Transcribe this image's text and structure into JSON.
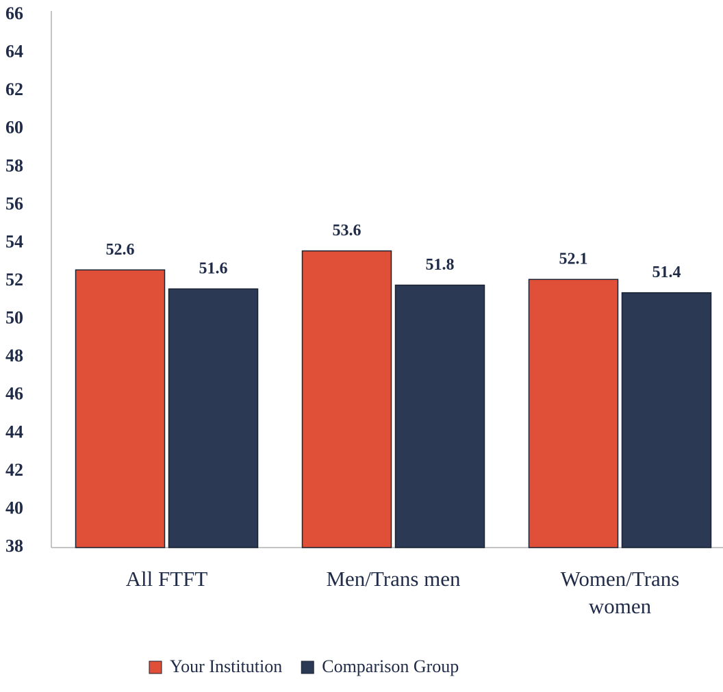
{
  "chart_data": {
    "type": "bar",
    "categories": [
      "All FTFT",
      "Men/Trans men",
      "Women/Trans women"
    ],
    "series": [
      {
        "name": "Your Institution",
        "color": "#e04f38",
        "values": [
          52.6,
          53.6,
          52.1
        ]
      },
      {
        "name": "Comparison Group",
        "color": "#2b3954",
        "values": [
          51.6,
          51.8,
          51.4
        ]
      }
    ],
    "ylim": [
      38,
      66
    ],
    "yticks": [
      38,
      40,
      42,
      44,
      46,
      48,
      50,
      52,
      54,
      56,
      58,
      60,
      62,
      64,
      66
    ],
    "grid": false,
    "legend": "bottom"
  }
}
